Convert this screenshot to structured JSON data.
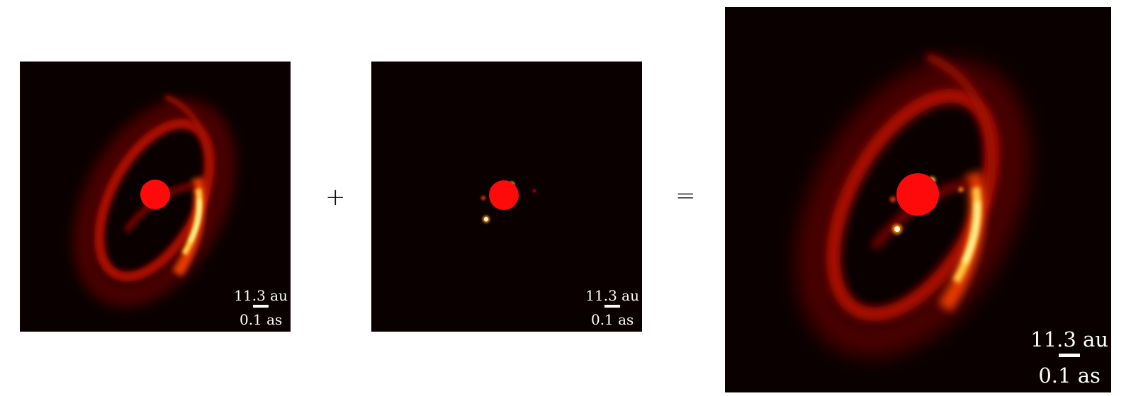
{
  "panels": {
    "disk": {
      "scale_top": "11.3 au",
      "scale_bottom": "0.1 as"
    },
    "planets": {
      "scale_top": "11.3 au",
      "scale_bottom": "0.1 as"
    },
    "combined": {
      "scale_top": "11.3 au",
      "scale_bottom": "0.1 as"
    }
  },
  "operators": {
    "plus": "+",
    "equals": "="
  },
  "colors": {
    "background": "#0a0000",
    "coronagraph_mask": "#ff0a0a",
    "colormap": [
      "#0a0000",
      "#5a0000",
      "#b01000",
      "#e83a00",
      "#ff8a00",
      "#ffd040",
      "#ffffb0"
    ]
  }
}
